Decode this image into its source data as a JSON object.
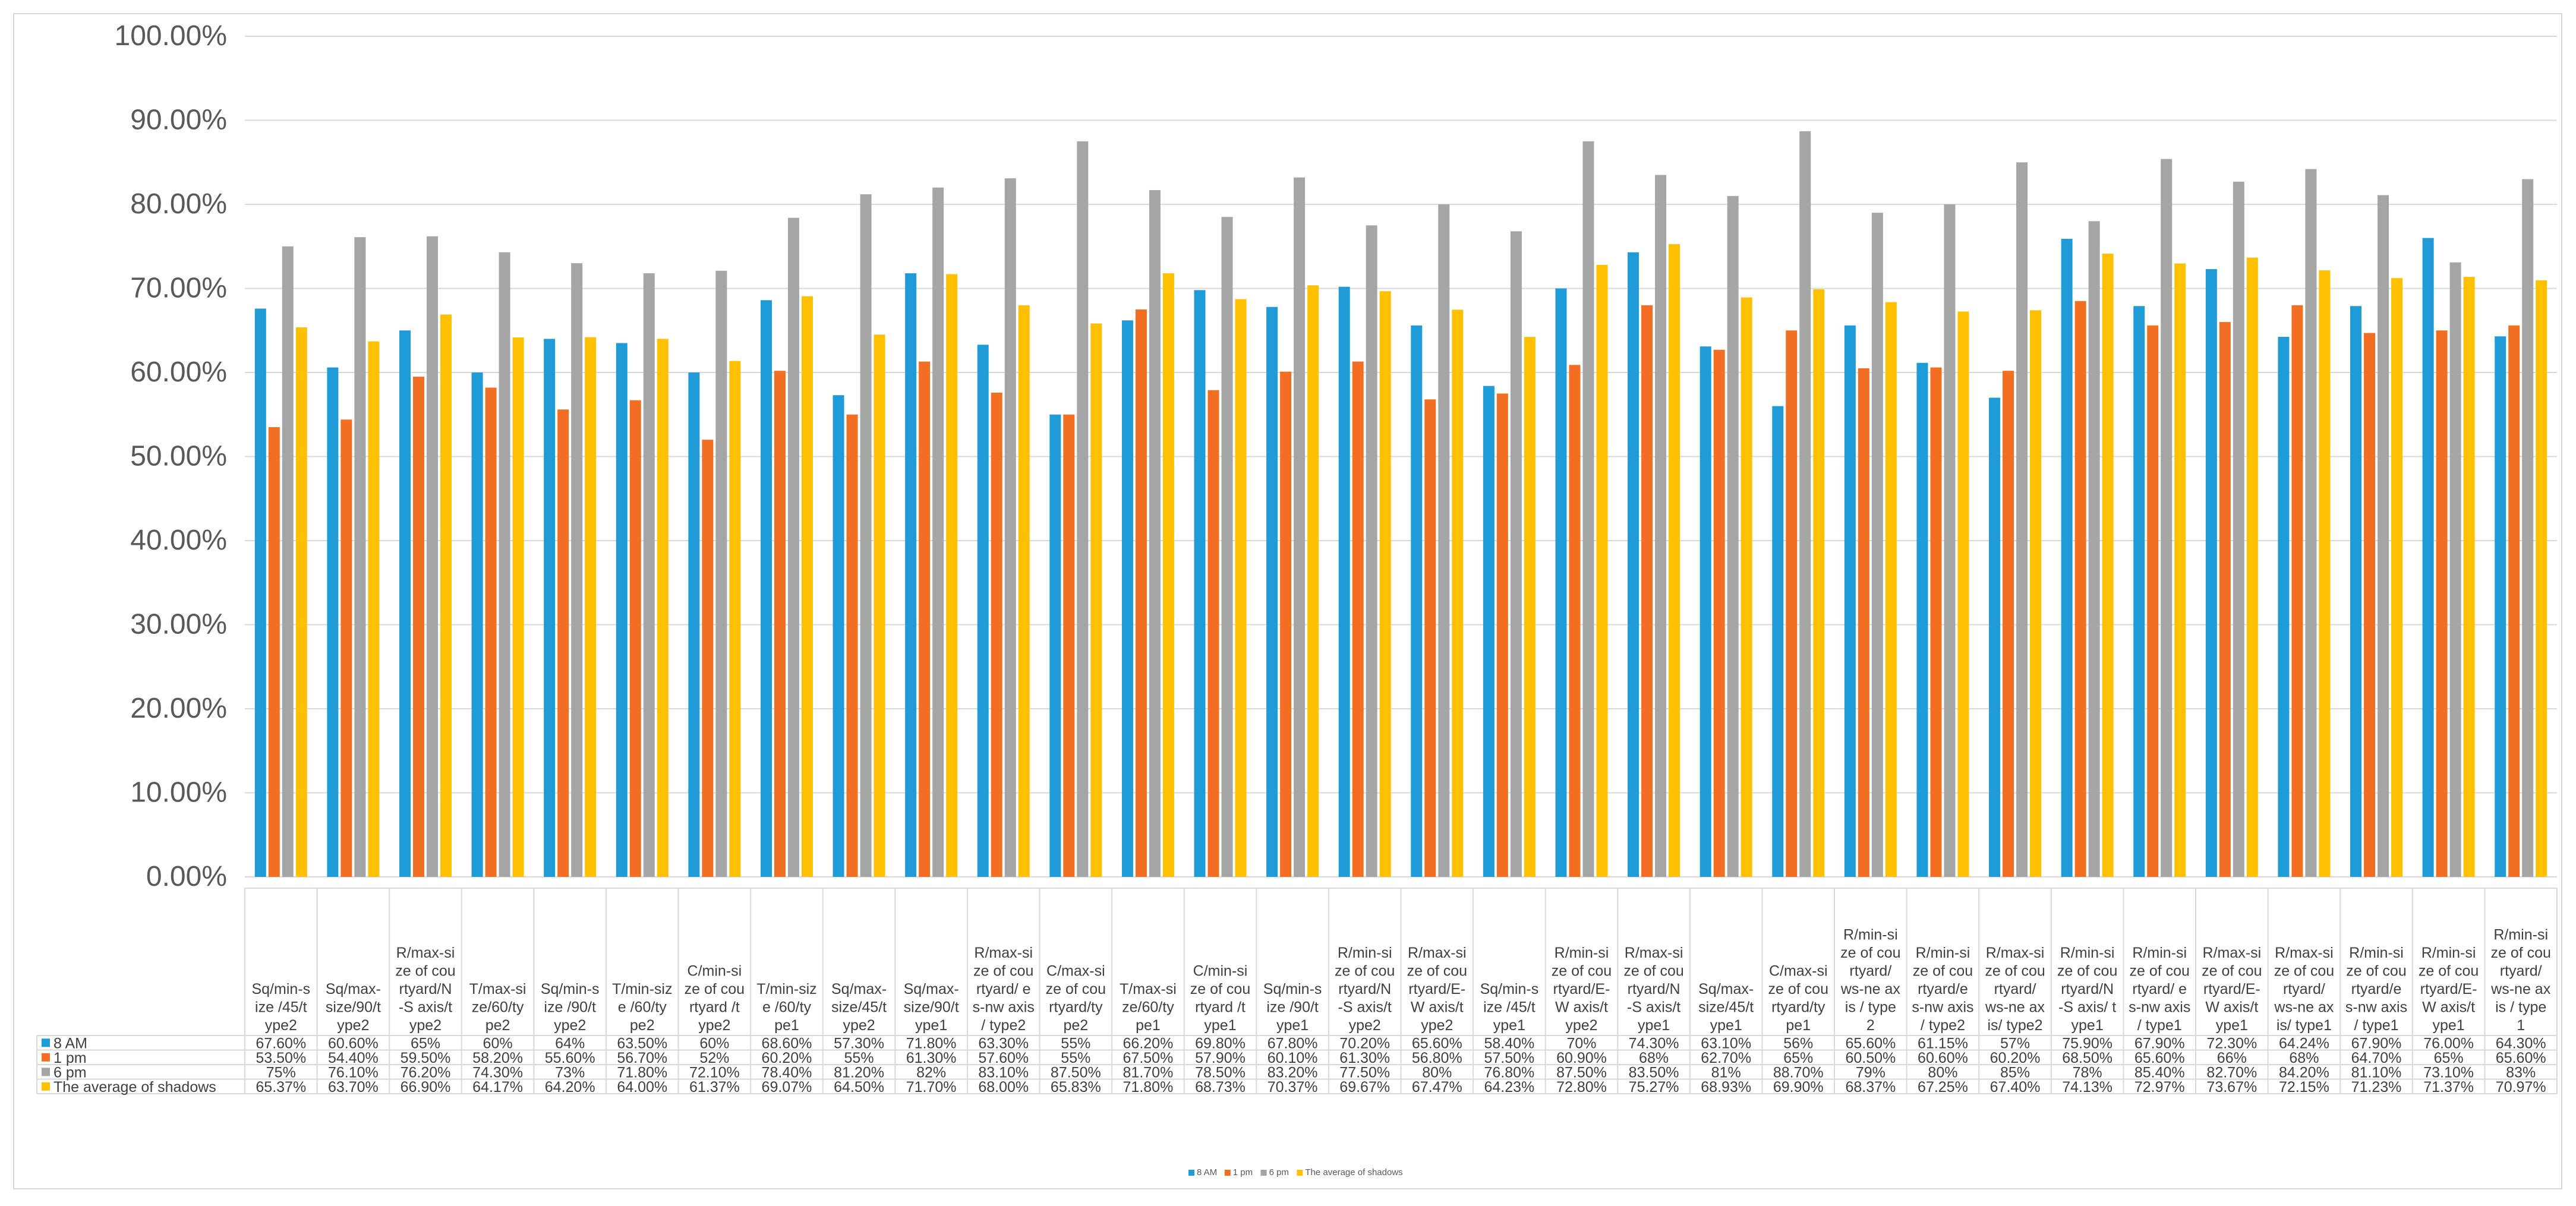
{
  "chart_data": {
    "type": "bar",
    "title": "",
    "xlabel": "",
    "ylabel": "",
    "ylim": [
      0,
      1
    ],
    "y_ticks": [
      "0.00%",
      "10.00%",
      "20.00%",
      "30.00%",
      "40.00%",
      "50.00%",
      "60.00%",
      "70.00%",
      "80.00%",
      "90.00%",
      "100.00%"
    ],
    "gridlines": true,
    "legend_position": "bottom",
    "categories": [
      "Sq/min-size /45/type2",
      "Sq/max-size/90/type2",
      "R/max-size of courtyard/N-S axis/type2",
      "T/max-size/60/type2",
      "Sq/min-size /90/type2",
      "T/min-size /60/type2",
      "C/min-size of courtyard /type2",
      "T/min-size /60/type1",
      "Sq/max-size/45/type2",
      "Sq/max-size/90/type1",
      "R/max-size of courtyard/ es-nw axis / type2",
      "C/max-size of courtyard/type2",
      "T/max-size/60/type1",
      "C/min-size of courtyard /type1",
      "Sq/min-size /90/type1",
      "R/min-size of courtyard/N-S axis/type2",
      "R/max-size of courtyard/E-W axis/type2",
      "Sq/min-size /45/type1",
      "R/min-size of courtyard/E-W axis/type2",
      "R/max-size of courtyard/N-S axis/type1",
      "Sq/max-size/45/type1",
      "C/max-size of courtyard/type1",
      "R/min-size of courtyard/ ws-ne axis / type 2",
      "R/min-size of courtyard/es-nw axis / type2",
      "R/max-size of courtyard/ ws-ne axis/ type2",
      "R/min-size of courtyard/N-S axis/ type1",
      "R/min-size of courtyard/ es-nw axis / type1",
      "R/max-size of courtyard/E-W axis/type1",
      "R/max-size of courtyard/ ws-ne axis/ type1",
      "R/min-size of courtyard/es-nw axis / type1",
      "R/min-size of courtyard/E-W axis/type1",
      "R/min-size of courtyard/ ws-ne axis / type 1"
    ],
    "category_lines": [
      [
        "Sq/min-s",
        "ize /45/t",
        "ype2"
      ],
      [
        "Sq/max-",
        "size/90/t",
        "ype2"
      ],
      [
        "R/max-si",
        "ze of cou",
        "rtyard/N",
        "-S axis/t",
        "ype2"
      ],
      [
        "T/max-si",
        "ze/60/ty",
        "pe2"
      ],
      [
        "Sq/min-s",
        "ize /90/t",
        "ype2"
      ],
      [
        "T/min-siz",
        "e /60/ty",
        "pe2"
      ],
      [
        "C/min-si",
        "ze of cou",
        "rtyard /t",
        "ype2"
      ],
      [
        "T/min-siz",
        "e /60/ty",
        "pe1"
      ],
      [
        "Sq/max-",
        "size/45/t",
        "ype2"
      ],
      [
        "Sq/max-",
        "size/90/t",
        "ype1"
      ],
      [
        "R/max-si",
        "ze of cou",
        "rtyard/ e",
        "s-nw axis",
        "/ type2"
      ],
      [
        "C/max-si",
        "ze of cou",
        "rtyard/ty",
        "pe2"
      ],
      [
        "T/max-si",
        "ze/60/ty",
        "pe1"
      ],
      [
        "C/min-si",
        "ze of cou",
        "rtyard /t",
        "ype1"
      ],
      [
        "Sq/min-s",
        "ize /90/t",
        "ype1"
      ],
      [
        "R/min-si",
        "ze of cou",
        "rtyard/N",
        "-S axis/t",
        "ype2"
      ],
      [
        "R/max-si",
        "ze of cou",
        "rtyard/E-",
        "W axis/t",
        "ype2"
      ],
      [
        "Sq/min-s",
        "ize /45/t",
        "ype1"
      ],
      [
        "R/min-si",
        "ze of cou",
        "rtyard/E-",
        "W axis/t",
        "ype2"
      ],
      [
        "R/max-si",
        "ze of cou",
        "rtyard/N",
        "-S axis/t",
        "ype1"
      ],
      [
        "Sq/max-",
        "size/45/t",
        "ype1"
      ],
      [
        "C/max-si",
        "ze of cou",
        "rtyard/ty",
        "pe1"
      ],
      [
        "R/min-si",
        "ze of cou",
        "rtyard/",
        "ws-ne ax",
        "is / type",
        "2"
      ],
      [
        "R/min-si",
        "ze of cou",
        "rtyard/e",
        "s-nw axis",
        "/ type2"
      ],
      [
        "R/max-si",
        "ze of cou",
        "rtyard/",
        "ws-ne ax",
        "is/ type2"
      ],
      [
        "R/min-si",
        "ze of cou",
        "rtyard/N",
        "-S axis/ t",
        "ype1"
      ],
      [
        "R/min-si",
        "ze of cou",
        "rtyard/ e",
        "s-nw axis",
        "/ type1"
      ],
      [
        "R/max-si",
        "ze of cou",
        "rtyard/E-",
        "W axis/t",
        "ype1"
      ],
      [
        "R/max-si",
        "ze of cou",
        "rtyard/",
        "ws-ne ax",
        "is/ type1"
      ],
      [
        "R/min-si",
        "ze of cou",
        "rtyard/e",
        "s-nw axis",
        "/ type1"
      ],
      [
        "R/min-si",
        "ze of cou",
        "rtyard/E-",
        "W axis/t",
        "ype1"
      ],
      [
        "R/min-si",
        "ze of cou",
        "rtyard/",
        "ws-ne ax",
        "is / type",
        "1"
      ]
    ],
    "series": [
      {
        "name": "8 AM",
        "color": "#1f9bd7",
        "values": [
          0.676,
          0.606,
          0.65,
          0.6,
          0.64,
          0.635,
          0.6,
          0.686,
          0.573,
          0.718,
          0.633,
          0.55,
          0.662,
          0.698,
          0.678,
          0.702,
          0.656,
          0.584,
          0.7,
          0.743,
          0.631,
          0.56,
          0.656,
          0.6115,
          0.57,
          0.759,
          0.679,
          0.723,
          0.6424,
          0.679,
          0.76,
          0.643
        ],
        "labels": [
          "67.60%",
          "60.60%",
          "65%",
          "60%",
          "64%",
          "63.50%",
          "60%",
          "68.60%",
          "57.30%",
          "71.80%",
          "63.30%",
          "55%",
          "66.20%",
          "69.80%",
          "67.80%",
          "70.20%",
          "65.60%",
          "58.40%",
          "70%",
          "74.30%",
          "63.10%",
          "56%",
          "65.60%",
          "61.15%",
          "57%",
          "75.90%",
          "67.90%",
          "72.30%",
          "64.24%",
          "67.90%",
          "76.00%",
          "64.30%"
        ]
      },
      {
        "name": "1 pm",
        "color": "#f26e22",
        "values": [
          0.535,
          0.544,
          0.595,
          0.582,
          0.556,
          0.567,
          0.52,
          0.602,
          0.55,
          0.613,
          0.576,
          0.55,
          0.675,
          0.579,
          0.601,
          0.613,
          0.568,
          0.575,
          0.609,
          0.68,
          0.627,
          0.65,
          0.605,
          0.606,
          0.602,
          0.685,
          0.656,
          0.66,
          0.68,
          0.647,
          0.65,
          0.656
        ],
        "labels": [
          "53.50%",
          "54.40%",
          "59.50%",
          "58.20%",
          "55.60%",
          "56.70%",
          "52%",
          "60.20%",
          "55%",
          "61.30%",
          "57.60%",
          "55%",
          "67.50%",
          "57.90%",
          "60.10%",
          "61.30%",
          "56.80%",
          "57.50%",
          "60.90%",
          "68%",
          "62.70%",
          "65%",
          "60.50%",
          "60.60%",
          "60.20%",
          "68.50%",
          "65.60%",
          "66%",
          "68%",
          "64.70%",
          "65%",
          "65.60%"
        ]
      },
      {
        "name": "6 pm",
        "color": "#a5a5a5",
        "values": [
          0.75,
          0.761,
          0.762,
          0.743,
          0.73,
          0.718,
          0.721,
          0.784,
          0.812,
          0.82,
          0.831,
          0.875,
          0.817,
          0.785,
          0.832,
          0.775,
          0.8,
          0.768,
          0.875,
          0.835,
          0.81,
          0.887,
          0.79,
          0.8,
          0.85,
          0.78,
          0.854,
          0.827,
          0.842,
          0.811,
          0.731,
          0.83
        ],
        "labels": [
          "75%",
          "76.10%",
          "76.20%",
          "74.30%",
          "73%",
          "71.80%",
          "72.10%",
          "78.40%",
          "81.20%",
          "82%",
          "83.10%",
          "87.50%",
          "81.70%",
          "78.50%",
          "83.20%",
          "77.50%",
          "80%",
          "76.80%",
          "87.50%",
          "83.50%",
          "81%",
          "88.70%",
          "79%",
          "80%",
          "85%",
          "78%",
          "85.40%",
          "82.70%",
          "84.20%",
          "81.10%",
          "73.10%",
          "83%"
        ]
      },
      {
        "name": "The average of shadows",
        "color": "#ffc000",
        "values": [
          0.6537,
          0.637,
          0.669,
          0.6417,
          0.642,
          0.64,
          0.6137,
          0.6907,
          0.645,
          0.717,
          0.68,
          0.6583,
          0.718,
          0.6873,
          0.7037,
          0.6967,
          0.6747,
          0.6423,
          0.728,
          0.7527,
          0.6893,
          0.699,
          0.6837,
          0.6725,
          0.674,
          0.7413,
          0.7297,
          0.7367,
          0.7215,
          0.7123,
          0.7137,
          0.7097
        ],
        "labels": [
          "65.37%",
          "63.70%",
          "66.90%",
          "64.17%",
          "64.20%",
          "64.00%",
          "61.37%",
          "69.07%",
          "64.50%",
          "71.70%",
          "68.00%",
          "65.83%",
          "71.80%",
          "68.73%",
          "70.37%",
          "69.67%",
          "67.47%",
          "64.23%",
          "72.80%",
          "75.27%",
          "68.93%",
          "69.90%",
          "68.37%",
          "67.25%",
          "67.40%",
          "74.13%",
          "72.97%",
          "73.67%",
          "72.15%",
          "71.23%",
          "71.37%",
          "70.97%"
        ]
      }
    ]
  }
}
